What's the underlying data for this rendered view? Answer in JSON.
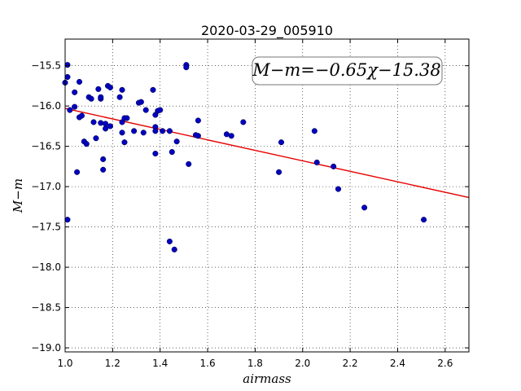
{
  "chart_data": {
    "type": "scatter",
    "title": "2020-03-29_005910",
    "xlabel": "airmass",
    "ylabel": "M−m",
    "annotation": "M−m=−0.65χ−15.38",
    "xlim": [
      1.0,
      2.7
    ],
    "ylim": [
      -19.05,
      -15.17
    ],
    "xticks": [
      "1.0",
      "1.2",
      "1.4",
      "1.6",
      "1.8",
      "2.0",
      "2.2",
      "2.4",
      "2.6"
    ],
    "yticks": [
      "−15.5",
      "−16.0",
      "−16.5",
      "−17.0",
      "−17.5",
      "−18.0",
      "−18.5",
      "−19.0"
    ],
    "grid": true,
    "marker_color": "#0000bf",
    "fit_color": "#e60000",
    "fit": {
      "slope": -0.65,
      "intercept": -15.38
    },
    "points": [
      [
        1.0,
        -15.71
      ],
      [
        1.01,
        -15.49
      ],
      [
        1.01,
        -15.64
      ],
      [
        1.01,
        -17.41
      ],
      [
        1.02,
        -16.05
      ],
      [
        1.04,
        -16.01
      ],
      [
        1.04,
        -15.83
      ],
      [
        1.05,
        -16.82
      ],
      [
        1.06,
        -15.7
      ],
      [
        1.06,
        -16.14
      ],
      [
        1.07,
        -16.12
      ],
      [
        1.08,
        -16.44
      ],
      [
        1.09,
        -16.47
      ],
      [
        1.1,
        -15.89
      ],
      [
        1.11,
        -15.91
      ],
      [
        1.12,
        -16.2
      ],
      [
        1.13,
        -16.4
      ],
      [
        1.14,
        -15.79
      ],
      [
        1.15,
        -15.91
      ],
      [
        1.15,
        -15.89
      ],
      [
        1.15,
        -16.21
      ],
      [
        1.16,
        -16.79
      ],
      [
        1.16,
        -16.66
      ],
      [
        1.17,
        -16.28
      ],
      [
        1.17,
        -16.22
      ],
      [
        1.18,
        -15.75
      ],
      [
        1.19,
        -16.25
      ],
      [
        1.19,
        -15.77
      ],
      [
        1.23,
        -15.89
      ],
      [
        1.24,
        -16.2
      ],
      [
        1.24,
        -16.33
      ],
      [
        1.24,
        -15.8
      ],
      [
        1.25,
        -16.45
      ],
      [
        1.25,
        -16.15
      ],
      [
        1.26,
        -16.15
      ],
      [
        1.29,
        -16.31
      ],
      [
        1.31,
        -15.96
      ],
      [
        1.32,
        -15.95
      ],
      [
        1.33,
        -16.33
      ],
      [
        1.34,
        -16.05
      ],
      [
        1.37,
        -15.8
      ],
      [
        1.38,
        -16.26
      ],
      [
        1.38,
        -16.11
      ],
      [
        1.38,
        -16.31
      ],
      [
        1.39,
        -16.06
      ],
      [
        1.38,
        -16.59
      ],
      [
        1.4,
        -16.05
      ],
      [
        1.41,
        -16.31
      ],
      [
        1.44,
        -16.31
      ],
      [
        1.44,
        -17.68
      ],
      [
        1.45,
        -16.57
      ],
      [
        1.46,
        -17.78
      ],
      [
        1.47,
        -16.44
      ],
      [
        1.51,
        -15.49
      ],
      [
        1.51,
        -15.52
      ],
      [
        1.52,
        -16.72
      ],
      [
        1.55,
        -16.36
      ],
      [
        1.56,
        -16.37
      ],
      [
        1.56,
        -16.18
      ],
      [
        1.68,
        -16.35
      ],
      [
        1.7,
        -16.37
      ],
      [
        1.75,
        -16.2
      ],
      [
        1.9,
        -16.82
      ],
      [
        1.91,
        -16.45
      ],
      [
        2.05,
        -16.31
      ],
      [
        2.06,
        -16.7
      ],
      [
        2.13,
        -16.75
      ],
      [
        2.15,
        -17.03
      ],
      [
        2.26,
        -17.26
      ],
      [
        2.51,
        -17.41
      ]
    ]
  }
}
